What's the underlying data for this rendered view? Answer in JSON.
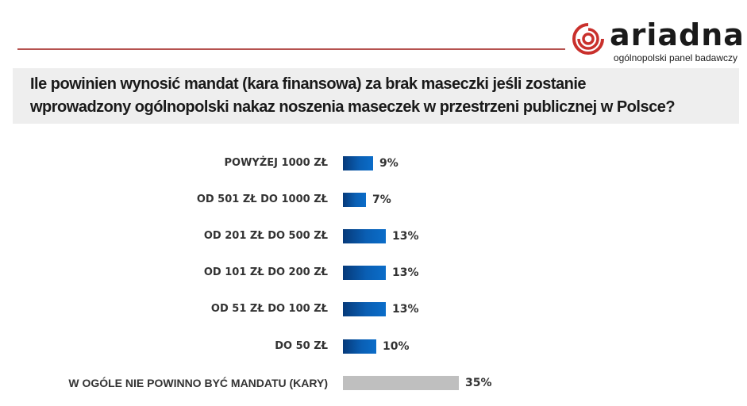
{
  "header": {
    "brand": "ariadna",
    "tagline": "ogólnopolski panel badawczy",
    "logo_icon": "spiral-circle-icon",
    "colors": {
      "rule": "#b5524f",
      "logo_red": "#c9302c"
    }
  },
  "question": {
    "line1": "Ile powinien wynosić mandat (kara finansowa) za brak maseczki jeśli zostanie",
    "line2": "wprowadzony ogólnopolski nakaz noszenia maseczek w przestrzeni publicznej w Polsce?"
  },
  "chart_data": {
    "type": "bar",
    "orientation": "horizontal",
    "title": "Ile powinien wynosić mandat (kara finansowa) za brak maseczki jeśli zostanie wprowadzony ogólnopolski nakaz noszenia maseczek w przestrzeni publicznej w Polsce?",
    "xlabel": "",
    "ylabel": "",
    "grid": false,
    "legend": "none",
    "unit": "%",
    "categories": [
      "POWYŻEJ 1000 ZŁ",
      "OD 501 ZŁ DO 1000 ZŁ",
      "OD 201 ZŁ DO 500 ZŁ",
      "OD 101 ZŁ DO 200 ZŁ",
      "OD 51 ZŁ DO 100 ZŁ",
      "DO 50 ZŁ",
      "W OGÓLE NIE POWINNO BYĆ MANDATU (KARY)"
    ],
    "values": [
      9,
      7,
      13,
      13,
      13,
      10,
      35
    ],
    "labels": [
      "9%",
      "7%",
      "13%",
      "13%",
      "13%",
      "10%",
      "35%"
    ],
    "colors": [
      "#0a5fb4",
      "#0a5fb4",
      "#0a5fb4",
      "#0a5fb4",
      "#0a5fb4",
      "#0a5fb4",
      "#bfbfbf"
    ]
  }
}
